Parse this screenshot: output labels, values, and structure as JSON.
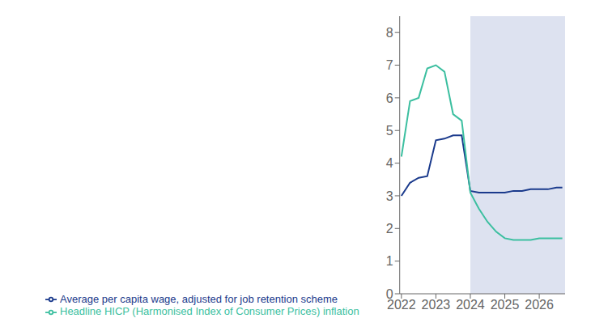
{
  "chart_data": {
    "type": "line",
    "x": [
      2022.0,
      2022.25,
      2022.5,
      2022.75,
      2023.0,
      2023.25,
      2023.5,
      2023.75,
      2024.0,
      2024.25,
      2024.5,
      2024.75,
      2025.0,
      2025.25,
      2025.5,
      2025.75,
      2026.0,
      2026.25,
      2026.5,
      2026.67
    ],
    "series": [
      {
        "name": "Average per capita wage, adjusted for job retention scheme",
        "color": "#1a3a8c",
        "values": [
          3.0,
          3.4,
          3.55,
          3.6,
          4.7,
          4.75,
          4.85,
          4.85,
          3.15,
          3.1,
          3.1,
          3.1,
          3.1,
          3.15,
          3.15,
          3.2,
          3.2,
          3.2,
          3.25,
          3.25
        ]
      },
      {
        "name": "Headline HICP (Harmonised Index of Consumer Prices) inflation",
        "color": "#3cbfa0",
        "values": [
          4.2,
          5.9,
          6.0,
          6.9,
          7.0,
          6.8,
          5.5,
          5.3,
          3.1,
          2.6,
          2.2,
          1.9,
          1.7,
          1.65,
          1.65,
          1.65,
          1.7,
          1.7,
          1.7,
          1.7
        ]
      }
    ],
    "shaded_region": {
      "x": [
        2024.0,
        2026.75
      ],
      "color": "#dde2f0"
    },
    "xlim": [
      2021.95,
      2026.75
    ],
    "xticks": [
      2022,
      2023,
      2024,
      2025,
      2026
    ],
    "ylim": [
      0,
      8.5
    ],
    "yticks": [
      0,
      1,
      2,
      3,
      4,
      5,
      6,
      7,
      8
    ],
    "grid": false,
    "legend": "bottom"
  }
}
